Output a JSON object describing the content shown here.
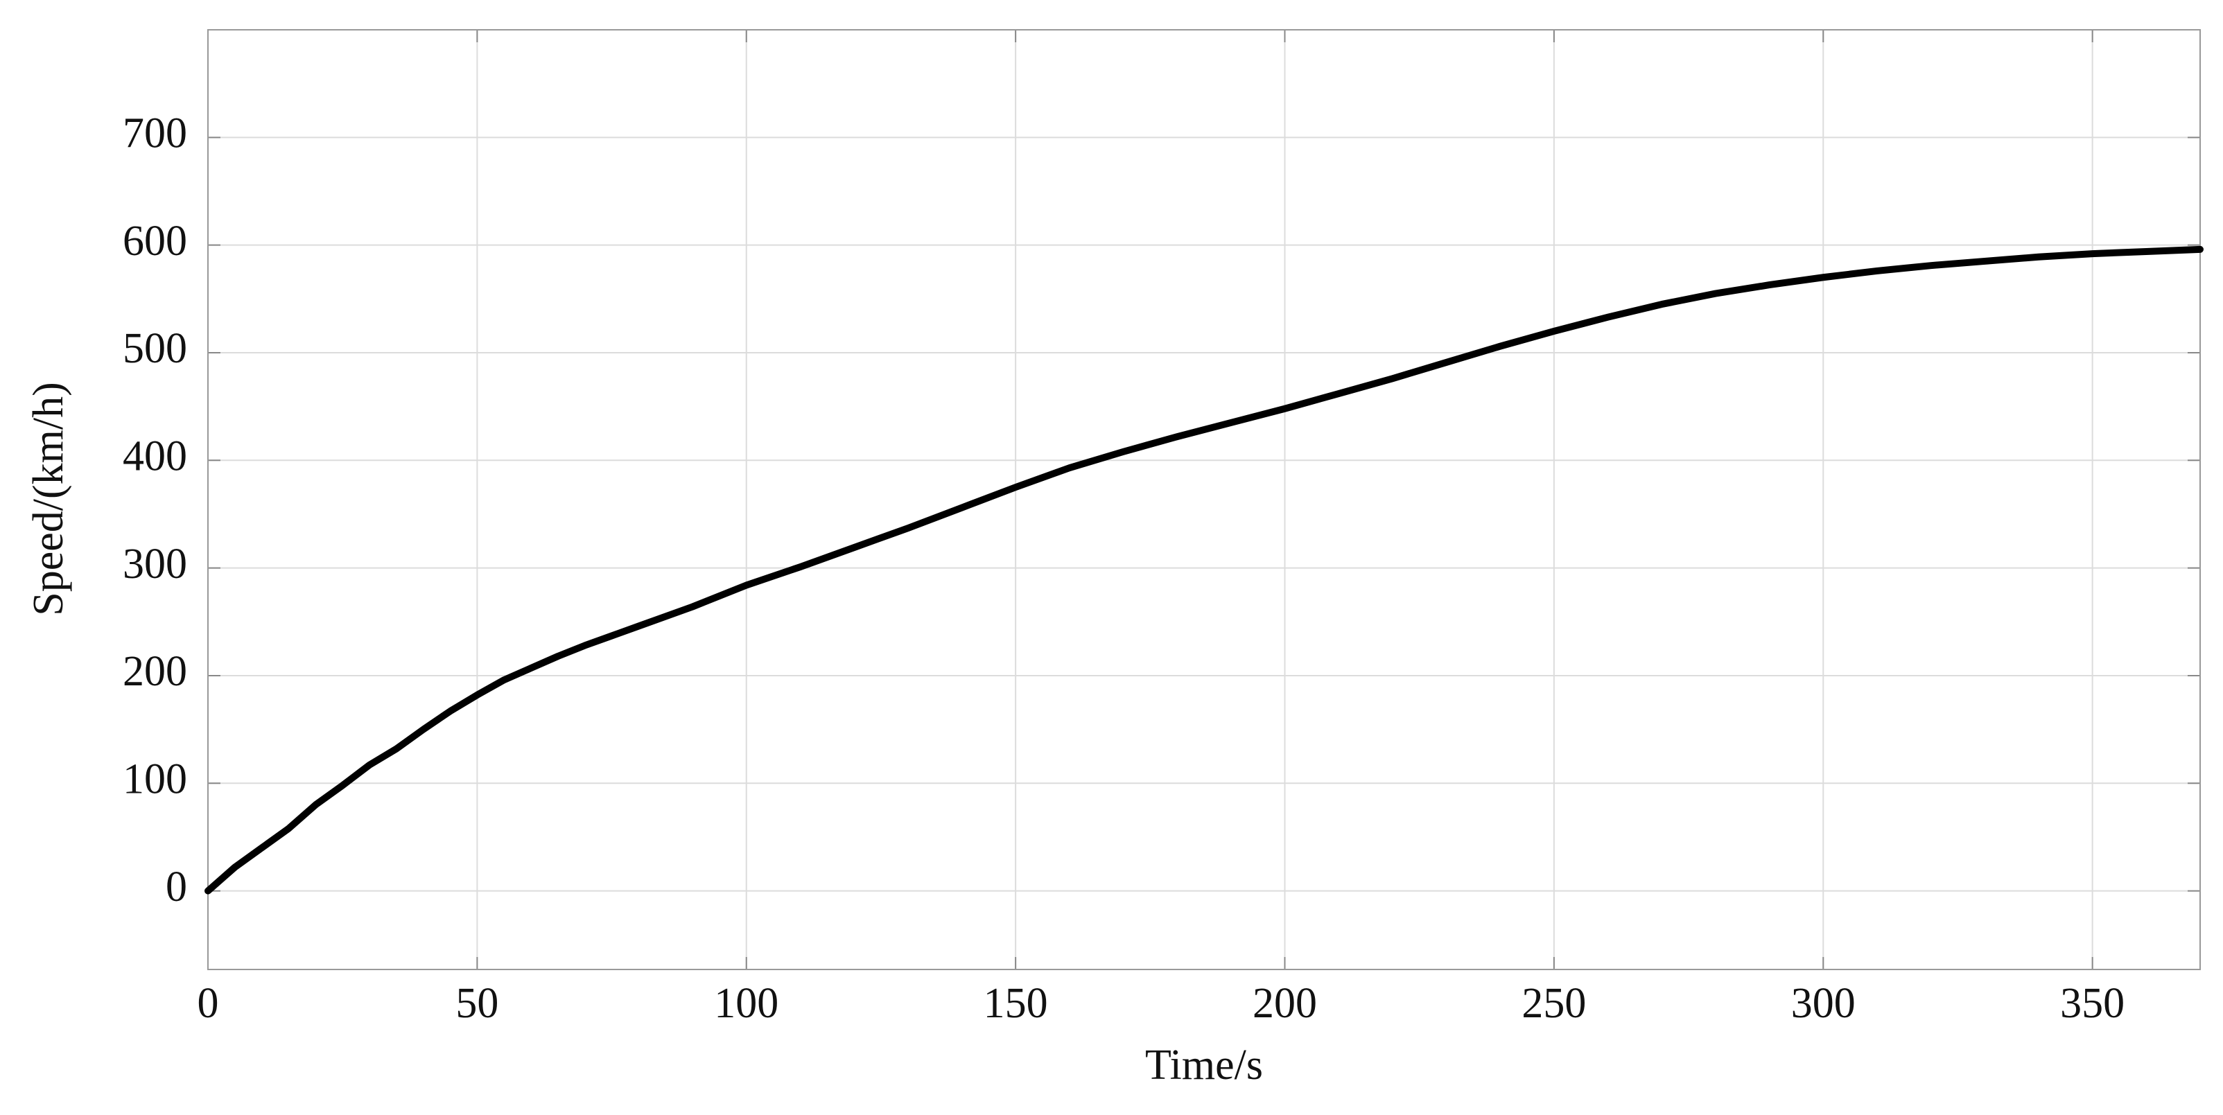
{
  "chart_data": {
    "type": "line",
    "x_label": "Time/s",
    "y_label": "Speed/(km/h)",
    "x": [
      0,
      5,
      10,
      15,
      20,
      25,
      30,
      35,
      40,
      45,
      50,
      55,
      60,
      65,
      70,
      75,
      80,
      90,
      100,
      110,
      120,
      130,
      140,
      150,
      160,
      170,
      180,
      190,
      200,
      210,
      220,
      230,
      240,
      250,
      260,
      270,
      280,
      290,
      300,
      310,
      320,
      330,
      340,
      350,
      360,
      370
    ],
    "series": [
      {
        "color": "#000000",
        "values": [
          0,
          22,
          40,
          58,
          80,
          98,
          117,
          132,
          150,
          167,
          182,
          196,
          207,
          218,
          228,
          237,
          246,
          264,
          284,
          301,
          319,
          337,
          356,
          375,
          393,
          408,
          422,
          435,
          448,
          462,
          476,
          491,
          506,
          520,
          533,
          545,
          555,
          563,
          570,
          576,
          581,
          585,
          589,
          592,
          594,
          596
        ]
      }
    ],
    "xlim": [
      0,
      370
    ],
    "ylim": [
      -73,
      800
    ],
    "xticks": [
      0,
      50,
      100,
      150,
      200,
      250,
      300,
      350
    ],
    "yticks": [
      0,
      100,
      200,
      300,
      400,
      500,
      600,
      700
    ],
    "grid": true
  }
}
